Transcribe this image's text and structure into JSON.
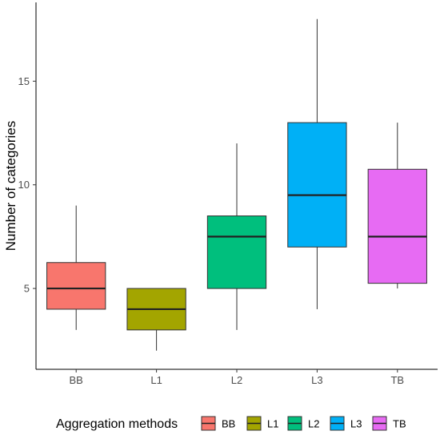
{
  "chart_data": {
    "type": "boxplot",
    "ylabel": "Number of categories",
    "xlabel": "",
    "ylim": [
      1.1,
      18.8
    ],
    "yticks": [
      5,
      10,
      15
    ],
    "grid": false,
    "legend": {
      "title": "Aggregation methods",
      "placement": "bottom",
      "entries": [
        "BB",
        "L1",
        "L2",
        "L3",
        "TB"
      ]
    },
    "categories": [
      "BB",
      "L1",
      "L2",
      "L3",
      "TB"
    ],
    "series": [
      {
        "name": "BB",
        "color": "#F8766D",
        "min": 3,
        "q1": 4,
        "median": 5,
        "q3": 6.25,
        "max": 9
      },
      {
        "name": "L1",
        "color": "#A3A500",
        "min": 2,
        "q1": 3,
        "median": 4,
        "q3": 5,
        "max": 5
      },
      {
        "name": "L2",
        "color": "#00BF7D",
        "min": 3,
        "q1": 5,
        "median": 7.5,
        "q3": 8.5,
        "max": 12
      },
      {
        "name": "L3",
        "color": "#00B0F6",
        "min": 4,
        "q1": 7,
        "median": 9.5,
        "q3": 13,
        "max": 18
      },
      {
        "name": "TB",
        "color": "#E76BF3",
        "min": 5,
        "q1": 5.25,
        "median": 7.5,
        "q3": 10.75,
        "max": 13
      }
    ]
  }
}
